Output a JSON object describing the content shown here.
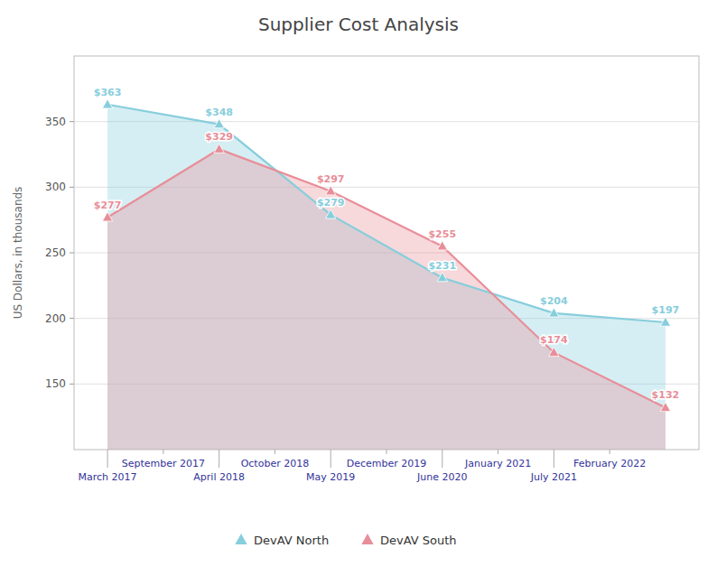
{
  "chart_data": {
    "type": "area",
    "title": "Supplier Cost Analysis",
    "y_label": "US Dollars, in thousands",
    "x": [
      0,
      1,
      2,
      3,
      4,
      5
    ],
    "xlim": [
      -0.3,
      5.3
    ],
    "xticks": [
      {
        "value": 0,
        "label": "March 2017"
      },
      {
        "value": 0.5,
        "label": "September 2017"
      },
      {
        "value": 1,
        "label": "April 2018"
      },
      {
        "value": 1.5,
        "label": "October 2018"
      },
      {
        "value": 2,
        "label": "May 2019"
      },
      {
        "value": 2.5,
        "label": "December 2019"
      },
      {
        "value": 3,
        "label": "June 2020"
      },
      {
        "value": 3.5,
        "label": "January 2021"
      },
      {
        "value": 4,
        "label": "July 2021"
      },
      {
        "value": 4.5,
        "label": "February 2022"
      }
    ],
    "series": [
      {
        "name": "DevAV North",
        "color": "#87CEDC",
        "values": [
          363,
          348,
          279,
          231,
          204,
          197
        ],
        "value_labels": [
          "$363",
          "$348",
          "$279",
          "$231",
          "$204",
          "$197"
        ]
      },
      {
        "name": "DevAV South",
        "color": "#E88E99",
        "values": [
          277,
          329,
          297,
          255,
          174,
          132
        ],
        "value_labels": [
          "$277",
          "$329",
          "$297",
          "$255",
          "$174",
          "$132"
        ]
      }
    ],
    "ylim": [
      100,
      400
    ],
    "yticks": [
      150,
      200,
      250,
      300,
      350
    ],
    "grid": true,
    "legend": "bottom",
    "marker": "triangle",
    "data_labels": true
  }
}
